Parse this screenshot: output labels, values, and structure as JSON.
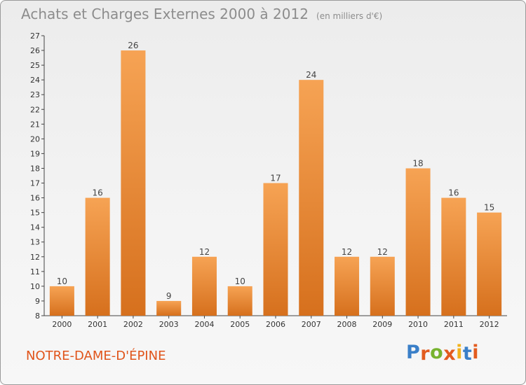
{
  "chart_data": {
    "type": "bar",
    "title": "Achats et Charges Externes 2000 à 2012",
    "subtitle": "(en milliers d'€)",
    "categories": [
      "2000",
      "2001",
      "2002",
      "2003",
      "2004",
      "2005",
      "2006",
      "2007",
      "2008",
      "2009",
      "2010",
      "2011",
      "2012"
    ],
    "values": [
      10,
      16,
      26,
      9,
      12,
      10,
      17,
      24,
      12,
      12,
      18,
      16,
      15
    ],
    "ylim": [
      8,
      27
    ],
    "yticks": [
      8,
      9,
      10,
      11,
      12,
      13,
      14,
      15,
      16,
      17,
      18,
      19,
      20,
      21,
      22,
      23,
      24,
      25,
      26,
      27
    ],
    "grid": false,
    "bar_color_top": "#f6a354",
    "bar_color_bottom": "#d6701d"
  },
  "commune": "NOTRE-DAME-D'ÉPINE",
  "logo": {
    "letters": [
      "P",
      "r",
      "o",
      "x",
      "i",
      "t",
      "i"
    ],
    "colors": [
      "#3a7fc8",
      "#e25b1e",
      "#77b32f",
      "#e25b1e",
      "#f2b21b",
      "#3a7fc8",
      "#e25b1e"
    ]
  }
}
